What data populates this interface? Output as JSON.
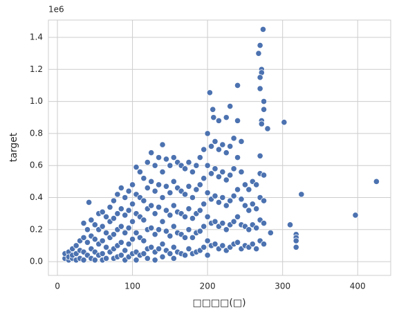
{
  "chart_data": {
    "type": "scatter",
    "x_label": "□□□□(□)",
    "y_label": "target",
    "y_offset_label": "1e6",
    "xlim": [
      -12,
      444
    ],
    "ylim": [
      -86000,
      1508000
    ],
    "xticks": [
      0,
      100,
      200,
      300,
      400
    ],
    "yticks": [
      {
        "value": 0,
        "label": "0.0"
      },
      {
        "value": 200000,
        "label": "0.2"
      },
      {
        "value": 400000,
        "label": "0.4"
      },
      {
        "value": 600000,
        "label": "0.6"
      },
      {
        "value": 800000,
        "label": "0.8"
      },
      {
        "value": 1000000,
        "label": "1.0"
      },
      {
        "value": 1200000,
        "label": "1.2"
      },
      {
        "value": 1400000,
        "label": "1.4"
      }
    ],
    "grid": true,
    "color": "#4c72b0",
    "x": [
      10,
      10,
      15,
      15,
      15,
      20,
      20,
      20,
      25,
      25,
      25,
      30,
      30,
      30,
      35,
      35,
      35,
      35,
      40,
      40,
      40,
      45,
      45,
      45,
      45,
      50,
      50,
      50,
      50,
      55,
      55,
      55,
      55,
      60,
      60,
      60,
      60,
      60,
      65,
      65,
      65,
      65,
      70,
      70,
      70,
      70,
      75,
      75,
      75,
      75,
      75,
      80,
      80,
      80,
      80,
      80,
      85,
      85,
      85,
      85,
      85,
      90,
      90,
      90,
      90,
      90,
      95,
      95,
      95,
      95,
      95,
      100,
      100,
      100,
      100,
      100,
      105,
      105,
      105,
      105,
      105,
      105,
      110,
      110,
      110,
      110,
      110,
      115,
      115,
      115,
      115,
      115,
      120,
      120,
      120,
      120,
      120,
      120,
      125,
      125,
      125,
      125,
      125,
      130,
      130,
      130,
      130,
      130,
      130,
      135,
      135,
      135,
      135,
      135,
      140,
      140,
      140,
      140,
      140,
      140,
      145,
      145,
      145,
      145,
      145,
      150,
      150,
      150,
      150,
      150,
      155,
      155,
      155,
      155,
      155,
      155,
      160,
      160,
      160,
      160,
      160,
      165,
      165,
      165,
      165,
      165,
      170,
      170,
      170,
      170,
      170,
      175,
      175,
      175,
      175,
      175,
      180,
      180,
      180,
      180,
      180,
      185,
      185,
      185,
      185,
      185,
      190,
      190,
      190,
      190,
      190,
      195,
      195,
      195,
      195,
      195,
      200,
      200,
      200,
      200,
      200,
      200,
      205,
      205,
      205,
      205,
      205,
      210,
      210,
      210,
      210,
      210,
      215,
      215,
      215,
      215,
      215,
      220,
      220,
      220,
      220,
      220,
      225,
      225,
      225,
      225,
      225,
      230,
      230,
      230,
      230,
      230,
      235,
      235,
      235,
      235,
      235,
      240,
      240,
      240,
      240,
      240,
      245,
      245,
      245,
      245,
      245,
      250,
      250,
      250,
      250,
      255,
      255,
      255,
      255,
      260,
      260,
      260,
      260,
      265,
      265,
      265,
      265,
      270,
      270,
      270,
      270,
      270,
      275,
      275,
      275,
      275,
      274,
      270,
      268,
      272,
      272,
      270,
      275,
      270,
      275,
      302,
      240,
      203,
      207,
      230,
      208,
      215,
      225,
      325,
      397,
      425,
      310,
      318,
      318,
      318,
      318,
      284,
      42,
      272,
      272,
      280
    ],
    "values": [
      20000,
      50000,
      10000,
      60000,
      30000,
      80000,
      20000,
      40000,
      100000,
      50000,
      10000,
      130000,
      70000,
      20000,
      240000,
      150000,
      60000,
      10000,
      200000,
      120000,
      40000,
      260000,
      160000,
      80000,
      20000,
      230000,
      140000,
      60000,
      10000,
      300000,
      200000,
      110000,
      40000,
      310000,
      220000,
      130000,
      50000,
      10000,
      280000,
      180000,
      90000,
      20000,
      340000,
      250000,
      150000,
      60000,
      380000,
      270000,
      170000,
      80000,
      20000,
      420000,
      300000,
      200000,
      100000,
      30000,
      460000,
      330000,
      220000,
      120000,
      40000,
      400000,
      290000,
      180000,
      70000,
      10000,
      440000,
      320000,
      210000,
      110000,
      30000,
      480000,
      360000,
      250000,
      140000,
      50000,
      590000,
      420000,
      300000,
      180000,
      60000,
      10000,
      560000,
      400000,
      280000,
      150000,
      40000,
      520000,
      380000,
      260000,
      130000,
      50000,
      620000,
      460000,
      330000,
      200000,
      80000,
      20000,
      680000,
      500000,
      350000,
      210000,
      90000,
      600000,
      440000,
      300000,
      170000,
      60000,
      10000,
      650000,
      480000,
      340000,
      200000,
      80000,
      730000,
      560000,
      400000,
      250000,
      110000,
      30000,
      640000,
      470000,
      320000,
      190000,
      70000,
      600000,
      430000,
      290000,
      160000,
      50000,
      650000,
      500000,
      350000,
      220000,
      90000,
      20000,
      620000,
      460000,
      310000,
      180000,
      60000,
      600000,
      440000,
      300000,
      170000,
      50000,
      580000,
      420000,
      280000,
      150000,
      40000,
      620000,
      470000,
      330000,
      200000,
      80000,
      560000,
      400000,
      270000,
      150000,
      50000,
      600000,
      450000,
      300000,
      180000,
      60000,
      650000,
      480000,
      320000,
      190000,
      70000,
      700000,
      520000,
      360000,
      220000,
      90000,
      800000,
      600000,
      430000,
      280000,
      130000,
      40000,
      720000,
      550000,
      390000,
      240000,
      100000,
      750000,
      580000,
      410000,
      250000,
      110000,
      700000,
      530000,
      370000,
      220000,
      80000,
      730000,
      560000,
      400000,
      240000,
      100000,
      680000,
      510000,
      350000,
      200000,
      70000,
      720000,
      540000,
      380000,
      230000,
      90000,
      770000,
      580000,
      410000,
      250000,
      110000,
      880000,
      650000,
      450000,
      280000,
      120000,
      750000,
      560000,
      390000,
      230000,
      80000,
      480000,
      350000,
      220000,
      100000,
      450000,
      320000,
      200000,
      90000,
      500000,
      360000,
      230000,
      110000,
      480000,
      330000,
      210000,
      80000,
      660000,
      550000,
      400000,
      260000,
      130000,
      540000,
      380000,
      240000,
      110000,
      1450000,
      1350000,
      1300000,
      1200000,
      1180000,
      1150000,
      1000000,
      1080000,
      950000,
      870000,
      1100000,
      1055000,
      950000,
      970000,
      900000,
      880000,
      900000,
      420000,
      290000,
      500000,
      230000,
      170000,
      150000,
      130000,
      90000,
      180000,
      370000,
      880000,
      860000,
      830000
    ]
  }
}
